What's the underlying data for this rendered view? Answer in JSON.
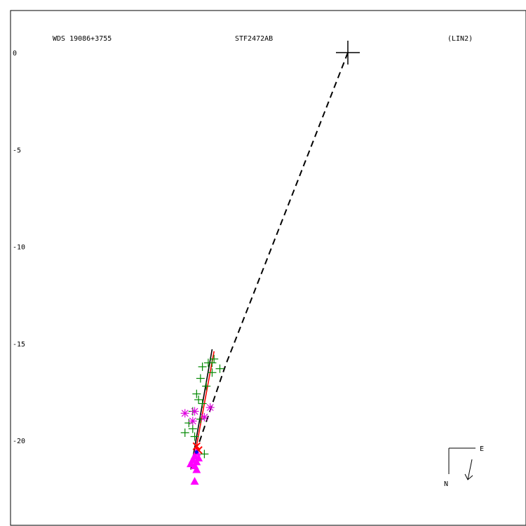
{
  "header": {
    "left": "WDS 19086+3755",
    "center": "STF2472AB",
    "right": "(LIN2)"
  },
  "compass": {
    "east": "E",
    "north": "N"
  },
  "chart_data": {
    "type": "scatter",
    "title": "STF2472AB",
    "xlabel": "",
    "ylabel": "",
    "ylim": [
      -22.5,
      0.5
    ],
    "y_ticks": [
      0,
      -5,
      -10,
      -15,
      -20
    ],
    "y_tick_labels": [
      "0",
      "-5",
      "-10",
      "-15",
      "-20"
    ],
    "grid": false,
    "primary_star": {
      "x": 0,
      "y": 0
    },
    "colors": {
      "axes": "#000000",
      "green_obs": "#008800",
      "magenta_obs": "#dd00dd",
      "red_obs": "#ff0000",
      "blue_obs": "#0000ff"
    },
    "series": [
      {
        "marker": "plus",
        "color": "#008800",
        "points": [
          [
            -6.9,
            -15.8
          ],
          [
            -7.2,
            -16.0
          ],
          [
            -7.5,
            -16.2
          ],
          [
            -6.6,
            -16.3
          ],
          [
            -7.0,
            -16.5
          ],
          [
            -7.6,
            -16.8
          ],
          [
            -7.3,
            -17.2
          ],
          [
            -7.8,
            -17.6
          ],
          [
            -7.7,
            -17.9
          ],
          [
            -7.5,
            -18.1
          ],
          [
            -8.0,
            -18.5
          ],
          [
            -7.6,
            -18.9
          ],
          [
            -8.2,
            -19.1
          ],
          [
            -8.0,
            -19.4
          ],
          [
            -8.4,
            -19.6
          ],
          [
            -7.9,
            -19.8
          ],
          [
            -7.4,
            -20.7
          ],
          [
            -7.0,
            -16.0
          ]
        ]
      },
      {
        "marker": "asterisk",
        "color": "#dd00dd",
        "points": [
          [
            -8.4,
            -18.6
          ],
          [
            -7.1,
            -18.3
          ],
          [
            -7.9,
            -18.5
          ],
          [
            -7.4,
            -18.8
          ],
          [
            -8.0,
            -19.0
          ]
        ]
      },
      {
        "marker": "triangle",
        "color": "#ff00ff",
        "points": [
          [
            -7.8,
            -20.6
          ],
          [
            -7.9,
            -20.8
          ],
          [
            -7.7,
            -20.9
          ],
          [
            -8.0,
            -21.0
          ],
          [
            -7.8,
            -21.1
          ],
          [
            -8.1,
            -21.2
          ],
          [
            -7.9,
            -21.3
          ],
          [
            -7.8,
            -21.5
          ],
          [
            -7.9,
            -22.1
          ]
        ]
      },
      {
        "marker": "cross",
        "color": "#ff0000",
        "points": [
          [
            -7.8,
            -20.3
          ],
          [
            -7.7,
            -20.5
          ]
        ]
      },
      {
        "marker": "dot",
        "color": "#0000ff",
        "points": [
          [
            -7.8,
            -20.6
          ]
        ]
      }
    ],
    "lines": [
      {
        "style": "solid",
        "color": "#000000",
        "points": [
          [
            -7.0,
            -15.3
          ],
          [
            -8.1,
            -21.5
          ]
        ]
      },
      {
        "style": "solid",
        "color": "#ff0000",
        "points": [
          [
            -6.9,
            -15.4
          ],
          [
            -7.9,
            -20.8
          ]
        ]
      },
      {
        "style": "dashed",
        "color": "#000000",
        "points": [
          [
            0,
            0
          ],
          [
            -6.3,
            -16.1
          ],
          [
            -7.7,
            -20.2
          ]
        ]
      }
    ]
  }
}
